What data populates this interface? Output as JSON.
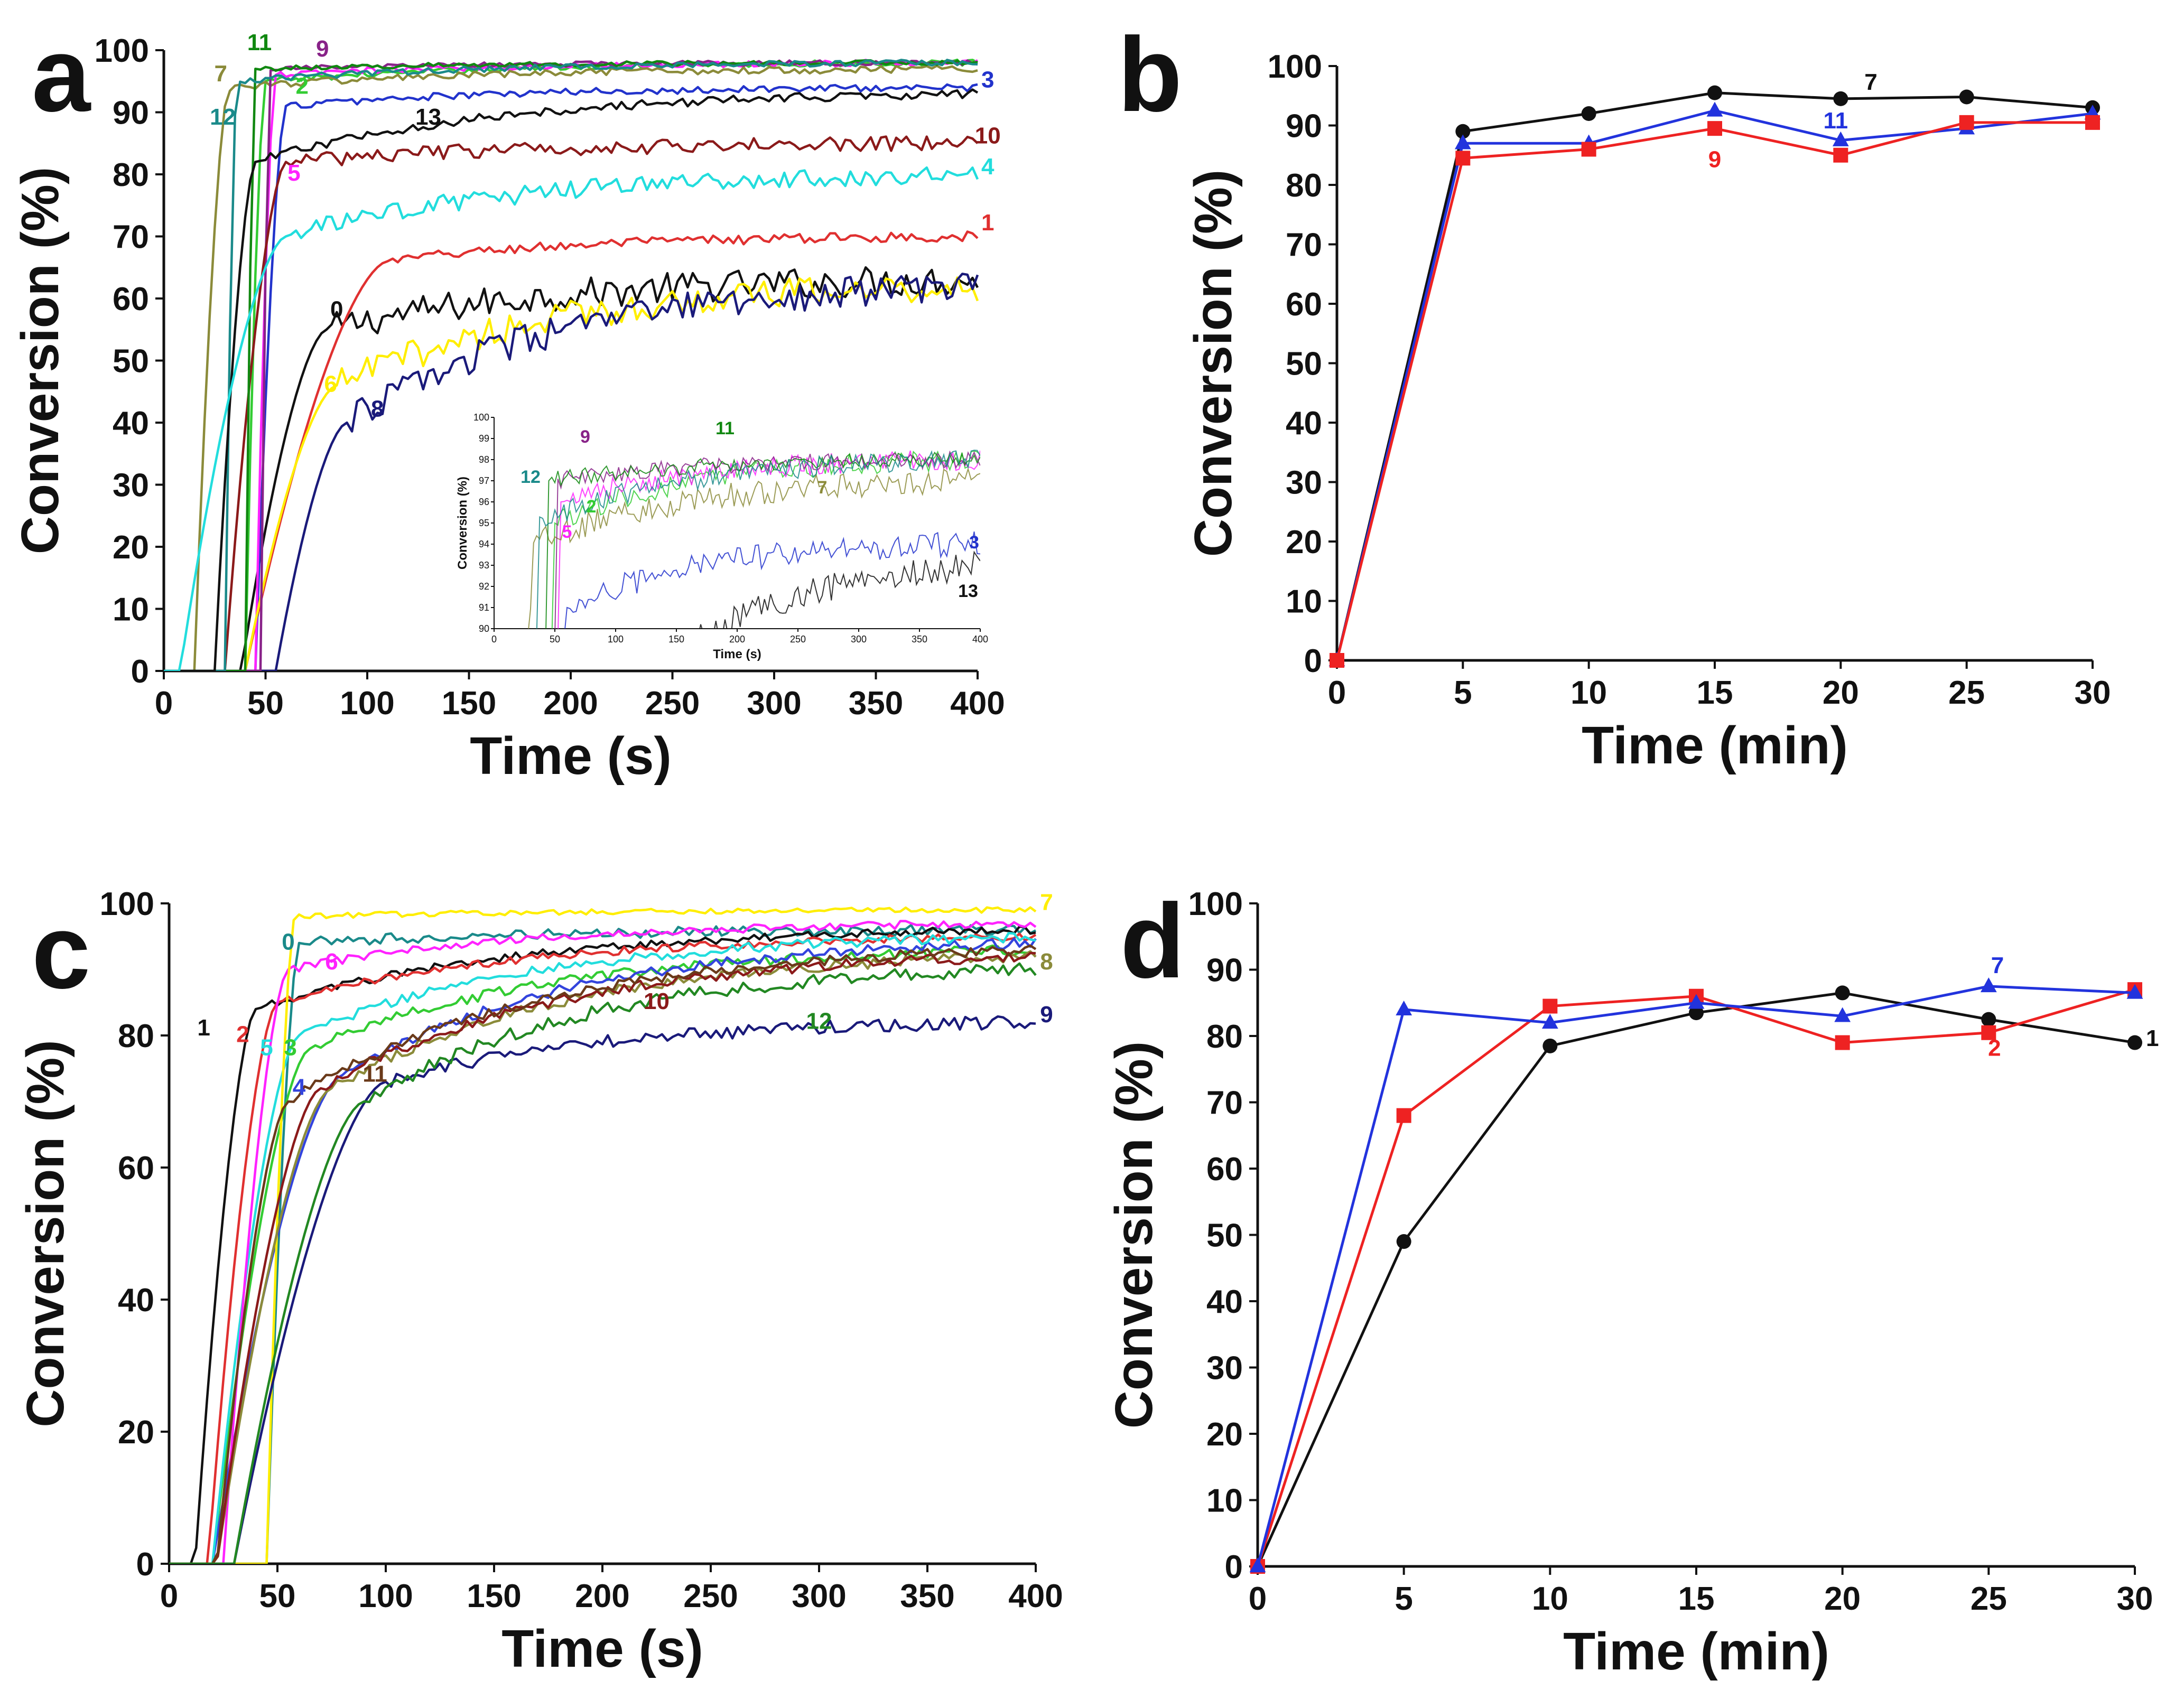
{
  "figure": {
    "panels": [
      "a",
      "b",
      "c",
      "d"
    ]
  },
  "chart_data": [
    {
      "panel": "a",
      "type": "line",
      "xlabel": "Time (s)",
      "ylabel": "Conversion (%)",
      "xlim": [
        0,
        400
      ],
      "ylim": [
        0,
        100
      ],
      "xticks": [
        0,
        50,
        100,
        150,
        200,
        250,
        300,
        350,
        400
      ],
      "yticks": [
        0,
        10,
        20,
        30,
        40,
        50,
        60,
        70,
        80,
        90,
        100
      ],
      "series": [
        {
          "name": "0",
          "color": "#111111",
          "onset": 38,
          "rise_end": 80,
          "y_rise": 55,
          "y_end": 63,
          "noise": 2.5,
          "label_pos": [
            85,
            57
          ]
        },
        {
          "name": "1",
          "color": "#e03030",
          "onset": 40,
          "rise_end": 110,
          "y_rise": 66,
          "y_end": 70,
          "noise": 0.8,
          "label_pos": [
            405,
            71
          ]
        },
        {
          "name": "2",
          "color": "#33cc33",
          "onset": 40,
          "rise_end": 50,
          "y_rise": 95,
          "y_end": 98,
          "noise": 0.5,
          "label_pos": [
            68,
            93
          ]
        },
        {
          "name": "3",
          "color": "#2233cc",
          "onset": 45,
          "rise_end": 60,
          "y_rise": 91,
          "y_end": 94,
          "noise": 0.6,
          "label_pos": [
            405,
            94
          ]
        },
        {
          "name": "5",
          "color": "#ff22ff",
          "onset": 45,
          "rise_end": 55,
          "y_rise": 96,
          "y_end": 98,
          "noise": 0.5,
          "label_pos": [
            64,
            79
          ]
        },
        {
          "name": "6",
          "color": "#ffee00",
          "onset": 40,
          "rise_end": 85,
          "y_rise": 46,
          "y_end": 62,
          "noise": 2.5,
          "label_pos": [
            82,
            45
          ]
        },
        {
          "name": "7",
          "color": "#8b8b3a",
          "onset": 15,
          "rise_end": 32,
          "y_rise": 94,
          "y_end": 97,
          "noise": 0.6,
          "label_pos": [
            28,
            95
          ]
        },
        {
          "name": "8",
          "color": "#1a1a7a",
          "onset": 55,
          "rise_end": 90,
          "y_rise": 40,
          "y_end": 62,
          "noise": 2.5,
          "label_pos": [
            105,
            41
          ]
        },
        {
          "name": "9",
          "color": "#882288",
          "onset": 48,
          "rise_end": 52,
          "y_rise": 97,
          "y_end": 98,
          "noise": 0.4,
          "label_pos": [
            78,
            99
          ]
        },
        {
          "name": "10",
          "color": "#8b1a1a",
          "onset": 30,
          "rise_end": 60,
          "y_rise": 82,
          "y_end": 85,
          "noise": 1.2,
          "label_pos": [
            405,
            85
          ]
        },
        {
          "name": "11",
          "color": "#118811",
          "onset": 40,
          "rise_end": 45,
          "y_rise": 97,
          "y_end": 98,
          "noise": 0.4,
          "label_pos": [
            47,
            100
          ]
        },
        {
          "name": "12",
          "color": "#1a8a8a",
          "onset": 30,
          "rise_end": 36,
          "y_rise": 95,
          "y_end": 98,
          "noise": 0.5,
          "label_pos": [
            29,
            88
          ]
        },
        {
          "name": "13",
          "color": "#111111",
          "onset": 25,
          "rise_end": 45,
          "y_rise": 82,
          "y_end": 93,
          "noise": 0.7,
          "label_pos": [
            130,
            88
          ]
        },
        {
          "name": "4",
          "color": "#22dddd",
          "onset": 8,
          "rise_end": 60,
          "y_rise": 70,
          "y_end": 80,
          "noise": 1.5,
          "label_pos": [
            405,
            80
          ]
        }
      ],
      "inset": {
        "xlabel": "Time (s)",
        "ylabel": "Conversion (%)",
        "xlim": [
          0,
          400
        ],
        "ylim": [
          90,
          100
        ],
        "xticks": [
          0,
          50,
          100,
          150,
          200,
          250,
          300,
          350,
          400
        ],
        "yticks": [
          90,
          91,
          92,
          93,
          94,
          95,
          96,
          97,
          98,
          99,
          100
        ],
        "labels": [
          {
            "text": "9",
            "color": "#882288",
            "pos": [
              75,
              98.8
            ]
          },
          {
            "text": "11",
            "color": "#118811",
            "pos": [
              190,
              99.2
            ]
          },
          {
            "text": "12",
            "color": "#1a8a8a",
            "pos": [
              30,
              96.9
            ]
          },
          {
            "text": "2",
            "color": "#33cc33",
            "pos": [
              80,
              95.5
            ]
          },
          {
            "text": "7",
            "color": "#8b8b3a",
            "pos": [
              270,
              96.4
            ]
          },
          {
            "text": "5",
            "color": "#ff22ff",
            "pos": [
              60,
              94.3
            ]
          },
          {
            "text": "3",
            "color": "#2233cc",
            "pos": [
              395,
              93.8
            ]
          },
          {
            "text": "13",
            "color": "#111111",
            "pos": [
              390,
              91.5
            ]
          }
        ]
      }
    },
    {
      "panel": "b",
      "type": "line",
      "xlabel": "Time (min)",
      "ylabel": "Conversion (%)",
      "xlim": [
        0,
        30
      ],
      "ylim": [
        0,
        100
      ],
      "xticks": [
        0,
        5,
        10,
        15,
        20,
        25,
        30
      ],
      "yticks": [
        0,
        10,
        20,
        30,
        40,
        50,
        60,
        70,
        80,
        90,
        100
      ],
      "x": [
        0,
        5,
        10,
        15,
        20,
        25,
        30
      ],
      "series": [
        {
          "name": "7",
          "color": "#111111",
          "marker": "circle",
          "values": [
            0,
            89,
            92,
            95.5,
            94.5,
            94.8,
            93
          ],
          "label_pos": [
            21.2,
            96
          ]
        },
        {
          "name": "11",
          "color": "#2233dd",
          "marker": "triangle",
          "values": [
            0,
            87,
            87,
            92.5,
            87.5,
            89.5,
            92
          ],
          "label_pos": [
            19.8,
            89.5
          ]
        },
        {
          "name": "9",
          "color": "#ee2222",
          "marker": "square",
          "values": [
            0,
            84.5,
            86,
            89.5,
            85,
            90.5,
            90.5
          ],
          "label_pos": [
            15,
            83
          ]
        }
      ]
    },
    {
      "panel": "c",
      "type": "line",
      "xlabel": "Time (s)",
      "ylabel": "Conversion (%)",
      "xlim": [
        0,
        400
      ],
      "ylim": [
        0,
        100
      ],
      "xticks": [
        0,
        50,
        100,
        150,
        200,
        250,
        300,
        350,
        400
      ],
      "yticks": [
        0,
        20,
        40,
        60,
        80,
        100
      ],
      "series": [
        {
          "name": "0",
          "color": "#1a8a8a",
          "onset": 45,
          "rise_end": 60,
          "y_rise": 94,
          "y_end": 96,
          "noise": 0.8,
          "label_pos": [
            55,
            93
          ]
        },
        {
          "name": "1",
          "color": "#111111",
          "onset": 12,
          "rise_end": 40,
          "y_rise": 84,
          "y_end": 96,
          "noise": 0.6,
          "label_pos": [
            16,
            80
          ]
        },
        {
          "name": "2",
          "color": "#e03030",
          "onset": 18,
          "rise_end": 50,
          "y_rise": 85,
          "y_end": 95,
          "noise": 0.6,
          "label_pos": [
            34,
            79
          ]
        },
        {
          "name": "3",
          "color": "#33cc33",
          "onset": 20,
          "rise_end": 65,
          "y_rise": 78,
          "y_end": 93,
          "noise": 0.8,
          "label_pos": [
            56,
            77
          ]
        },
        {
          "name": "4",
          "color": "#3344dd",
          "onset": 20,
          "rise_end": 80,
          "y_rise": 74,
          "y_end": 94,
          "noise": 0.8,
          "label_pos": [
            60,
            71
          ]
        },
        {
          "name": "5",
          "color": "#22dddd",
          "onset": 20,
          "rise_end": 60,
          "y_rise": 80,
          "y_end": 95,
          "noise": 0.8,
          "label_pos": [
            45,
            77
          ]
        },
        {
          "name": "6",
          "color": "#ff22ff",
          "onset": 25,
          "rise_end": 55,
          "y_rise": 90,
          "y_end": 97,
          "noise": 0.6,
          "label_pos": [
            75,
            90
          ]
        },
        {
          "name": "7",
          "color": "#ffee00",
          "onset": 45,
          "rise_end": 58,
          "y_rise": 98,
          "y_end": 99,
          "noise": 0.4,
          "label_pos": [
            405,
            99
          ]
        },
        {
          "name": "8",
          "color": "#8b8b3a",
          "onset": 22,
          "rise_end": 75,
          "y_rise": 72,
          "y_end": 92,
          "noise": 0.8,
          "label_pos": [
            405,
            90
          ]
        },
        {
          "name": "9",
          "color": "#1a1a7a",
          "onset": 30,
          "rise_end": 100,
          "y_rise": 73,
          "y_end": 82,
          "noise": 1.0,
          "label_pos": [
            405,
            82
          ]
        },
        {
          "name": "10",
          "color": "#8b1a1a",
          "onset": 22,
          "rise_end": 70,
          "y_rise": 72,
          "y_end": 92,
          "noise": 0.8,
          "label_pos": [
            225,
            84
          ]
        },
        {
          "name": "11",
          "color": "#6a3a1a",
          "onset": 22,
          "rise_end": 55,
          "y_rise": 70,
          "y_end": 93,
          "noise": 0.8,
          "label_pos": [
            95,
            73
          ]
        },
        {
          "name": "12",
          "color": "#228822",
          "onset": 30,
          "rise_end": 90,
          "y_rise": 70,
          "y_end": 90,
          "noise": 1.0,
          "label_pos": [
            300,
            81
          ]
        }
      ]
    },
    {
      "panel": "d",
      "type": "line",
      "xlabel": "Time (min)",
      "ylabel": "Conversion (%)",
      "xlim": [
        0,
        30
      ],
      "ylim": [
        0,
        100
      ],
      "xticks": [
        0,
        5,
        10,
        15,
        20,
        25,
        30
      ],
      "yticks": [
        0,
        10,
        20,
        30,
        40,
        50,
        60,
        70,
        80,
        90,
        100
      ],
      "x": [
        0,
        5,
        10,
        15,
        20,
        25,
        30
      ],
      "series": [
        {
          "name": "1",
          "color": "#111111",
          "marker": "circle",
          "values": [
            0,
            49,
            78.5,
            83.5,
            86.5,
            82.5,
            79
          ],
          "label_pos": [
            30.6,
            78.5
          ]
        },
        {
          "name": "2",
          "color": "#ee2222",
          "marker": "square",
          "values": [
            0,
            68,
            84.5,
            86,
            79,
            80.5,
            87
          ],
          "label_pos": [
            25.2,
            77
          ]
        },
        {
          "name": "7",
          "color": "#2233dd",
          "marker": "triangle",
          "values": [
            0,
            84,
            82,
            85,
            83,
            87.5,
            86.5
          ],
          "label_pos": [
            25.3,
            89.5
          ]
        }
      ]
    }
  ]
}
